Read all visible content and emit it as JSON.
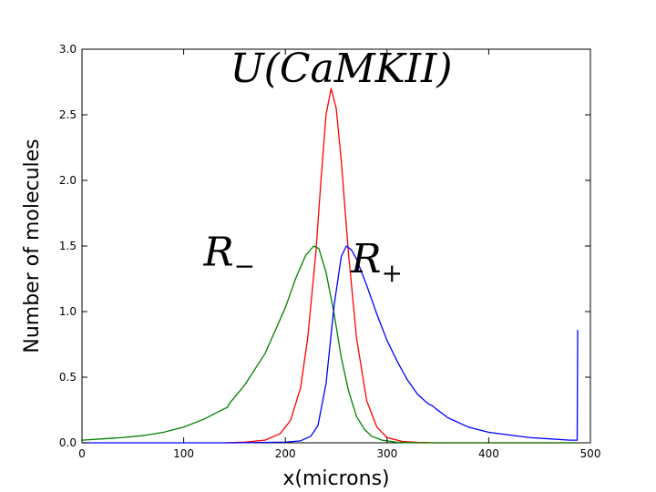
{
  "chart_data": {
    "type": "line",
    "title": "",
    "xlabel": "x(microns)",
    "ylabel": "Number of molecules",
    "xlim": [
      0,
      500
    ],
    "ylim": [
      0,
      3.0
    ],
    "xticks": [
      0,
      100,
      200,
      300,
      400,
      500
    ],
    "yticks": [
      0.0,
      0.5,
      1.0,
      1.5,
      2.0,
      2.5,
      3.0
    ],
    "xtick_labels": [
      "0",
      "100",
      "200",
      "300",
      "400",
      "500"
    ],
    "ytick_labels": [
      "0.0",
      "0.5",
      "1.0",
      "1.5",
      "2.0",
      "2.5",
      "3.0"
    ],
    "grid": false,
    "annotations": [
      {
        "text": "U(CaMKII)",
        "x": 255,
        "y": 2.75
      },
      {
        "text": "R",
        "sub": "−",
        "x": 145,
        "y": 1.35
      },
      {
        "text": "R",
        "sub": "+",
        "x": 290,
        "y": 1.3
      }
    ],
    "series": [
      {
        "color": "#ff0000",
        "x": [
          140,
          160,
          180,
          195,
          205,
          215,
          222,
          230,
          235,
          240,
          245,
          250,
          255,
          262,
          270,
          280,
          290,
          300,
          315,
          330,
          350,
          487
        ],
        "y": [
          0.0,
          0.005,
          0.02,
          0.07,
          0.17,
          0.42,
          0.8,
          1.45,
          2.0,
          2.5,
          2.7,
          2.55,
          2.15,
          1.45,
          0.8,
          0.32,
          0.12,
          0.04,
          0.01,
          0.003,
          0.0,
          0.0
        ]
      },
      {
        "color": "#008000",
        "x": [
          0,
          20,
          40,
          60,
          80,
          100,
          120,
          140,
          143,
          145,
          160,
          180,
          200,
          210,
          220,
          228,
          233,
          240,
          248,
          255,
          262,
          270,
          278,
          285,
          295,
          310,
          330,
          487
        ],
        "y": [
          0.02,
          0.03,
          0.04,
          0.055,
          0.08,
          0.12,
          0.18,
          0.26,
          0.27,
          0.3,
          0.44,
          0.68,
          1.03,
          1.25,
          1.43,
          1.5,
          1.48,
          1.3,
          0.98,
          0.65,
          0.4,
          0.2,
          0.1,
          0.05,
          0.02,
          0.004,
          0.0,
          0.0
        ]
      },
      {
        "color": "#0000ff",
        "x": [
          0,
          150,
          200,
          215,
          225,
          232,
          240,
          248,
          255,
          260,
          265,
          270,
          280,
          290,
          300,
          310,
          320,
          330,
          340,
          345,
          348,
          360,
          380,
          400,
          420,
          440,
          460,
          480,
          487,
          487.5
        ],
        "y": [
          0.0,
          0.0,
          0.005,
          0.015,
          0.05,
          0.13,
          0.45,
          1.05,
          1.42,
          1.5,
          1.47,
          1.4,
          1.2,
          0.98,
          0.78,
          0.62,
          0.48,
          0.37,
          0.3,
          0.28,
          0.26,
          0.19,
          0.12,
          0.08,
          0.06,
          0.04,
          0.03,
          0.02,
          0.02,
          0.86
        ]
      }
    ]
  }
}
